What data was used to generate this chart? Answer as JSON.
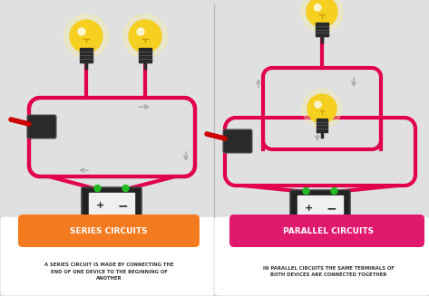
{
  "bg_color": "#e0e0e0",
  "left_title": "SERIES CIRCUITS",
  "right_title": "PARALLEL CIRCUITS",
  "left_desc": "A SERIES CIRCUIT IS MADE BY CONNECTING THE\nEND OF ONE DEVICE TO THE BEGINNING OF\nANOTHER",
  "right_desc": "IN PARALLEL CIRCUITS THE SAME TERMINALS OF\nBOTH DEVICES ARE CONNECTED TOGETHER",
  "series_color": "#f47b20",
  "parallel_color": "#e0196e",
  "wire_color": "#e0004d",
  "bulb_glass": "#f5d020",
  "bulb_base": "#2a2a2a",
  "desc_text_color": "#333333",
  "arrow_color": "#aaaaaa",
  "divider_color": "#bbbbbb",
  "battery_dark": "#222222",
  "battery_white": "#f0f0f0",
  "green_dot": "#22bb22",
  "red_wire": "#cc0000",
  "white": "#ffffff"
}
